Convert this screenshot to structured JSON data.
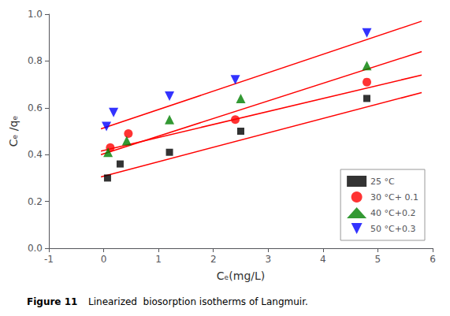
{
  "chart_data": {
    "type": "scatter",
    "x_label": "Cₑ(mg/L)",
    "y_label": "Cₑ /qₑ",
    "xlim": [
      -1,
      6
    ],
    "xticks": [
      -1,
      0,
      1,
      2,
      3,
      4,
      5,
      6
    ],
    "ylim": [
      0,
      1
    ],
    "yticks": [
      {
        "value": 0,
        "label": "0.0"
      },
      0.2,
      0.4,
      0.6,
      0.8,
      {
        "value": 1,
        "label": "1.0"
      }
    ],
    "grid": false,
    "legend": "lower right",
    "annotations": [
      "Figure 11",
      "Linearized  biosorption isotherms of Langmuir."
    ],
    "series": [
      {
        "type": "line",
        "color": "red",
        "x": [
          -0.05,
          5.8
        ],
        "values": [
          0.305,
          0.665
        ]
      },
      {
        "type": "line",
        "color": "red",
        "x": [
          -0.05,
          5.8
        ],
        "values": [
          0.415,
          0.74
        ]
      },
      {
        "type": "line",
        "color": "red",
        "x": [
          -0.05,
          5.8
        ],
        "values": [
          0.4,
          0.84
        ]
      },
      {
        "type": "line",
        "color": "red",
        "x": [
          -0.05,
          5.8
        ],
        "values": [
          0.51,
          0.97
        ]
      },
      {
        "type": "scatter",
        "name": "25 °C",
        "color": "black",
        "marker": "square",
        "x": [
          0.07,
          0.3,
          1.2,
          2.5,
          4.8
        ],
        "values": [
          0.3,
          0.36,
          0.41,
          0.5,
          0.64
        ]
      },
      {
        "type": "scatter",
        "name": "30 °C+ 0.1",
        "color": "red",
        "marker": "circle",
        "x": [
          0.12,
          0.45,
          2.4,
          4.8
        ],
        "values": [
          0.43,
          0.49,
          0.55,
          0.71
        ]
      },
      {
        "type": "scatter",
        "name": "40 °C+0.2",
        "color": "green",
        "marker": "triangle",
        "x": [
          0.08,
          0.42,
          1.2,
          2.5,
          4.8
        ],
        "values": [
          0.41,
          0.46,
          0.55,
          0.64,
          0.78
        ]
      },
      {
        "type": "scatter",
        "name": "50 °C+0.3",
        "color": "blue",
        "marker": "triangle-down",
        "x": [
          0.05,
          0.18,
          1.2,
          2.4,
          4.8
        ],
        "values": [
          0.52,
          0.58,
          0.65,
          0.72,
          0.92
        ]
      }
    ]
  }
}
